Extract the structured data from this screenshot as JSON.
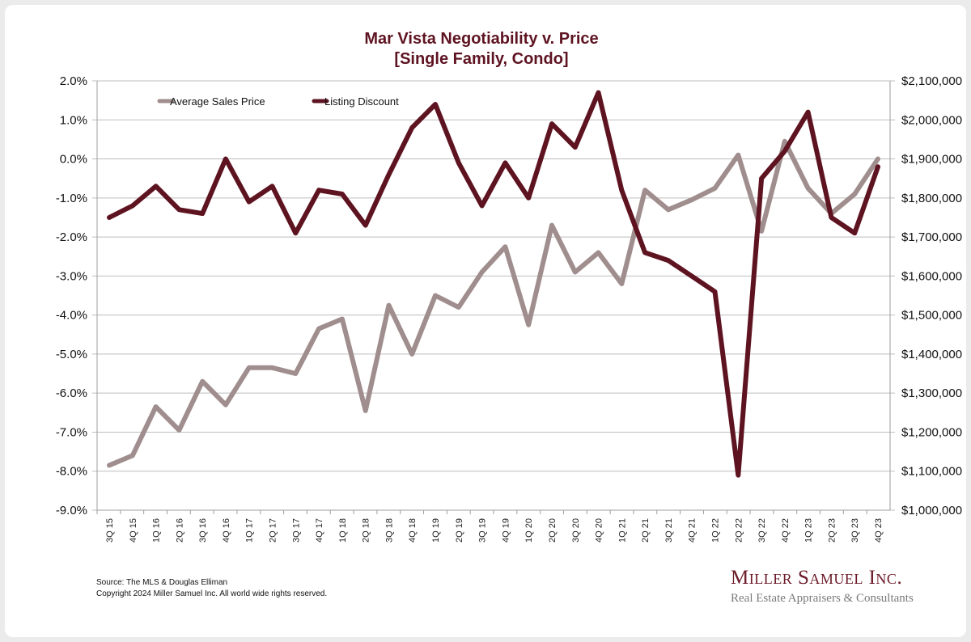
{
  "chart_data": {
    "type": "line",
    "title": "Mar Vista Negotiability v. Price",
    "subtitle": "[Single Family, Condo]",
    "xlabel": "",
    "ylabel_left": "",
    "ylabel_right": "",
    "categories": [
      "3Q 15",
      "4Q 15",
      "1Q 16",
      "2Q 16",
      "3Q 16",
      "4Q 16",
      "1Q 17",
      "2Q 17",
      "3Q 17",
      "4Q 17",
      "1Q 18",
      "2Q 18",
      "3Q 18",
      "4Q 18",
      "1Q 19",
      "2Q 19",
      "3Q 19",
      "4Q 19",
      "1Q 20",
      "2Q 20",
      "3Q 20",
      "4Q 20",
      "1Q 21",
      "2Q 21",
      "3Q 21",
      "4Q 21",
      "1Q 22",
      "2Q 22",
      "3Q 22",
      "4Q 22",
      "1Q 23",
      "2Q 23",
      "3Q 23",
      "4Q 23"
    ],
    "ylim_left": [
      -9.0,
      2.0
    ],
    "yticks_left": [
      "2.0%",
      "1.0%",
      "0.0%",
      "-1.0%",
      "-2.0%",
      "-3.0%",
      "-4.0%",
      "-5.0%",
      "-6.0%",
      "-7.0%",
      "-8.0%",
      "-9.0%"
    ],
    "ylim_right": [
      1000000,
      2100000
    ],
    "yticks_right": [
      "$2,100,000",
      "$2,000,000",
      "$1,900,000",
      "$1,800,000",
      "$1,700,000",
      "$1,600,000",
      "$1,500,000",
      "$1,400,000",
      "$1,300,000",
      "$1,200,000",
      "$1,100,000",
      "$1,000,000"
    ],
    "grid": true,
    "legend_position": "top-left",
    "series": [
      {
        "name": "Average Sales Price",
        "axis": "right",
        "color": "#a08e8e",
        "values": [
          1115000,
          1140000,
          1265000,
          1205000,
          1330000,
          1270000,
          1365000,
          1365000,
          1350000,
          1465000,
          1490000,
          1255000,
          1525000,
          1400000,
          1550000,
          1520000,
          1610000,
          1675000,
          1475000,
          1730000,
          1610000,
          1660000,
          1580000,
          1820000,
          1770000,
          1795000,
          1825000,
          1910000,
          1715000,
          1945000,
          1825000,
          1760000,
          1810000,
          1900000
        ]
      },
      {
        "name": "Listing Discount",
        "axis": "left",
        "color": "#5e1321",
        "values": [
          -1.5,
          -1.2,
          -0.7,
          -1.3,
          -1.4,
          0.0,
          -1.1,
          -0.7,
          -1.9,
          -0.8,
          -0.9,
          -1.7,
          -0.4,
          0.8,
          1.4,
          -0.1,
          -1.2,
          -0.1,
          -1.0,
          0.9,
          0.3,
          1.7,
          -0.8,
          -2.4,
          -2.6,
          -3.0,
          -3.4,
          -8.1,
          -0.5,
          0.2,
          1.2,
          -1.5,
          -1.9,
          -0.2
        ]
      }
    ]
  },
  "footer": {
    "source": "Source: The MLS & Douglas Elliman",
    "copyright": "Copyright 2024 Miller Samuel Inc.  All world wide rights reserved."
  },
  "logo": {
    "name": "Miller Samuel Inc.",
    "tagline": "Real Estate Appraisers & Consultants"
  }
}
